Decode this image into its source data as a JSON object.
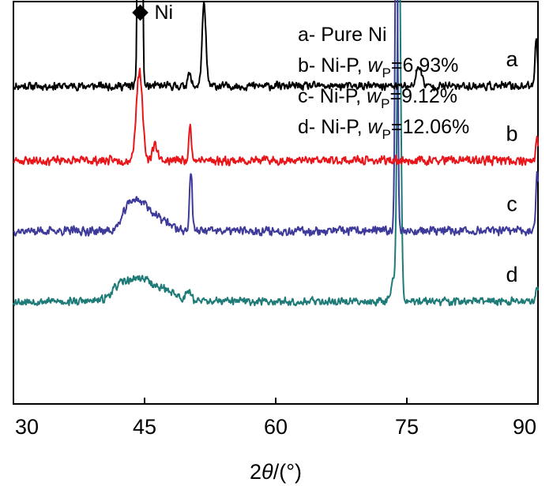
{
  "chart_data": {
    "type": "line",
    "xlabel_prefix": "2",
    "xlabel_symbol": "θ",
    "xlabel_suffix": "/(°)",
    "xlim": [
      30,
      90
    ],
    "x_ticks": [
      "30",
      "45",
      "60",
      "75",
      "90"
    ],
    "y_axis": "arbitrary intensity, no tick labels",
    "peak_marker": {
      "symbol": "◆",
      "label": "Ni",
      "x": 44.5
    },
    "legend": [
      {
        "key": "a",
        "sep": "- ",
        "text": "Pure Ni"
      },
      {
        "key": "b",
        "sep": "- ",
        "text": "Ni-P, ",
        "var": "w",
        "sub": "P",
        "value": "=6.93%"
      },
      {
        "key": "c",
        "sep": "- ",
        "text": "Ni-P, ",
        "var": "w",
        "sub": "P",
        "value": "=9.12%"
      },
      {
        "key": "d",
        "sep": "- ",
        "text": "Ni-P, ",
        "var": "w",
        "sub": "P",
        "value": "=12.06%"
      }
    ],
    "series": [
      {
        "name": "a",
        "label": "a",
        "color": "#000000",
        "baseline": 0.79,
        "noise": 0.012,
        "seed": 11,
        "peaks": [
          {
            "x": 44.3,
            "h": 0.77,
            "w": 0.12
          },
          {
            "x": 44.65,
            "h": 0.77,
            "w": 0.12
          },
          {
            "x": 51.8,
            "h": 0.2,
            "w": 0.22
          },
          {
            "x": 50.1,
            "h": 0.03,
            "w": 0.2
          },
          {
            "x": 76.4,
            "h": 0.05,
            "w": 0.3
          },
          {
            "x": 89.8,
            "h": 0.12,
            "w": 0.15
          }
        ]
      },
      {
        "name": "b",
        "label": "b",
        "color": "#e8161a",
        "baseline": 0.605,
        "noise": 0.013,
        "seed": 23,
        "peaks": [
          {
            "x": 44.4,
            "h": 0.22,
            "w": 0.35
          },
          {
            "x": 46.2,
            "h": 0.04,
            "w": 0.3
          },
          {
            "x": 50.2,
            "h": 0.09,
            "w": 0.15
          },
          {
            "x": 89.9,
            "h": 0.06,
            "w": 0.12
          }
        ]
      },
      {
        "name": "c",
        "label": "c",
        "color": "#3e3a9a",
        "baseline": 0.43,
        "noise": 0.013,
        "seed": 37,
        "peaks": [
          {
            "x": 43.3,
            "h": 0.06,
            "w": 0.8
          },
          {
            "x": 44.9,
            "h": 0.06,
            "w": 0.9
          },
          {
            "x": 47.0,
            "h": 0.025,
            "w": 1.0
          },
          {
            "x": 50.3,
            "h": 0.15,
            "w": 0.15
          },
          {
            "x": 73.8,
            "h": 0.94,
            "w": 0.14
          },
          {
            "x": 89.9,
            "h": 0.15,
            "w": 0.14
          }
        ]
      },
      {
        "name": "d",
        "label": "d",
        "color": "#1f7b78",
        "baseline": 0.255,
        "noise": 0.012,
        "seed": 53,
        "peaks": [
          {
            "x": 42.2,
            "h": 0.035,
            "w": 1.0
          },
          {
            "x": 44.6,
            "h": 0.055,
            "w": 1.3
          },
          {
            "x": 47.5,
            "h": 0.025,
            "w": 1.2
          },
          {
            "x": 50.1,
            "h": 0.025,
            "w": 0.3
          },
          {
            "x": 73.4,
            "h": 0.05,
            "w": 0.25
          },
          {
            "x": 74.1,
            "h": 0.95,
            "w": 0.2
          },
          {
            "x": 89.9,
            "h": 0.04,
            "w": 0.15
          }
        ]
      }
    ]
  }
}
